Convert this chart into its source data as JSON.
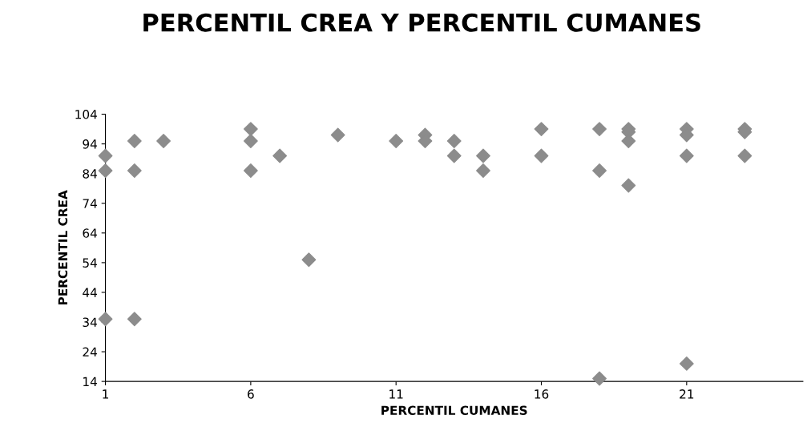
{
  "chart_data": {
    "type": "scatter",
    "title": "PERCENTIL CREA Y PERCENTIL CUMANES",
    "xlabel": "PERCENTIL CUMANES",
    "ylabel": "PERCENTIL CREA",
    "marker": "diamond",
    "grid": false,
    "legend": false,
    "xlim": [
      1,
      25
    ],
    "xticks": [
      1,
      6,
      11,
      16,
      21
    ],
    "ylim": [
      14,
      104
    ],
    "yticks": [
      14,
      24,
      34,
      44,
      54,
      64,
      74,
      84,
      94,
      104
    ],
    "series": [
      {
        "color": "#8c8c8c",
        "x": [
          1,
          1,
          1,
          2,
          2,
          2,
          3,
          6,
          6,
          6,
          7,
          8,
          9,
          11,
          12,
          12,
          13,
          13,
          14,
          14,
          16,
          16,
          18,
          18,
          18,
          19,
          19,
          19,
          19,
          21,
          21,
          21,
          21,
          23,
          23,
          23
        ],
        "values": [
          90,
          85,
          35,
          95,
          85,
          35,
          95,
          99,
          95,
          85,
          90,
          55,
          97,
          95,
          97,
          95,
          95,
          90,
          90,
          85,
          99,
          90,
          99,
          85,
          15,
          99,
          98,
          95,
          80,
          99,
          97,
          90,
          20,
          99,
          98,
          90
        ]
      }
    ]
  }
}
